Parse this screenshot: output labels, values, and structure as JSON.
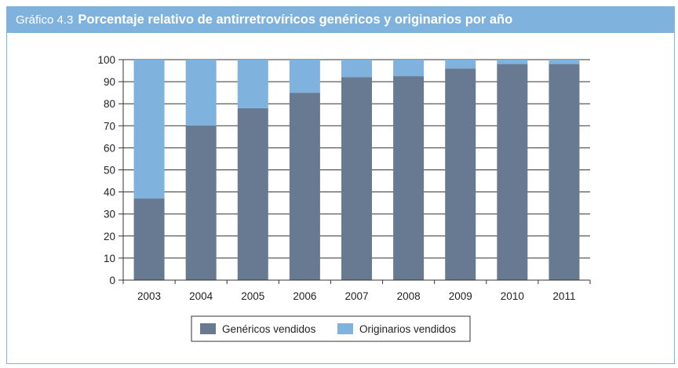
{
  "header": {
    "label": "Gráfico 4.3",
    "title": "Porcentaje relativo de antirretrovíricos genéricos y originarios por año"
  },
  "colors": {
    "header_bg": "#7fb2dc",
    "generic": "#687a91",
    "original": "#7fb2dc"
  },
  "chart_data": {
    "type": "bar",
    "stacked": true,
    "categories": [
      "2003",
      "2004",
      "2005",
      "2006",
      "2007",
      "2008",
      "2009",
      "2010",
      "2011"
    ],
    "series": [
      {
        "name": "Genéricos vendidos",
        "values": [
          37,
          70,
          78,
          85,
          92,
          92.5,
          96,
          98,
          98
        ]
      },
      {
        "name": "Originarios vendidos",
        "values": [
          63,
          30,
          22,
          15,
          8,
          7.5,
          4,
          2,
          2
        ]
      }
    ],
    "ylim": [
      0,
      100
    ],
    "yticks": [
      0,
      10,
      20,
      30,
      40,
      50,
      60,
      70,
      80,
      90,
      100
    ],
    "grid": true,
    "legend_placement": "bottom"
  }
}
